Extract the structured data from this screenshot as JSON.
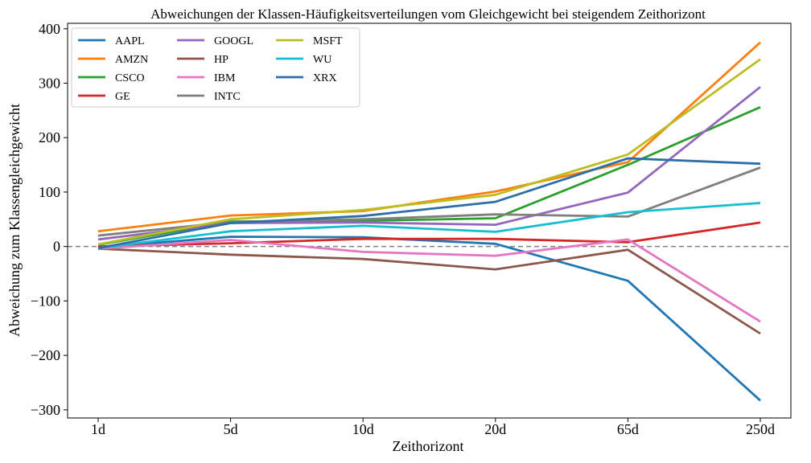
{
  "chart_data": {
    "type": "line",
    "title": "Abweichungen der Klassen-Häufigkeitsverteilungen vom Gleichgewicht bei steigendem Zeithorizont",
    "xlabel": "Zeithorizont",
    "ylabel": "Abweichung zum Klassengleichgewicht",
    "categories": [
      "1d",
      "5d",
      "10d",
      "20d",
      "65d",
      "250d"
    ],
    "ylim": [
      -315,
      410
    ],
    "yticks": [
      -300,
      -200,
      -100,
      0,
      100,
      200,
      300,
      400
    ],
    "ytick_labels": [
      "−300",
      "−200",
      "−100",
      "0",
      "100",
      "200",
      "300",
      "400"
    ],
    "reference_line": {
      "y": 0,
      "style": "dashed",
      "color": "#808080"
    },
    "grid": false,
    "legend_position": "top-left",
    "legend_columns": 3,
    "series": [
      {
        "name": "AAPL",
        "color": "#1f77b4",
        "values": [
          -2,
          18,
          17,
          5,
          -63,
          -283
        ]
      },
      {
        "name": "AMZN",
        "color": "#ff7f0e",
        "values": [
          28,
          57,
          65,
          101,
          155,
          375
        ]
      },
      {
        "name": "CSCO",
        "color": "#2ca02c",
        "values": [
          3,
          46,
          47,
          52,
          150,
          256
        ]
      },
      {
        "name": "GE",
        "color": "#d62728",
        "values": [
          0,
          6,
          14,
          14,
          8,
          44
        ]
      },
      {
        "name": "GOOGL",
        "color": "#9467bd",
        "values": [
          13,
          43,
          44,
          40,
          99,
          293
        ]
      },
      {
        "name": "HP",
        "color": "#8c564b",
        "values": [
          -4,
          -15,
          -23,
          -42,
          -6,
          -160
        ]
      },
      {
        "name": "IBM",
        "color": "#e377c2",
        "values": [
          -4,
          12,
          -10,
          -17,
          13,
          -138
        ]
      },
      {
        "name": "INTC",
        "color": "#7f7f7f",
        "values": [
          20,
          45,
          50,
          59,
          55,
          145
        ]
      },
      {
        "name": "MSFT",
        "color": "#bcbd22",
        "values": [
          4,
          50,
          67,
          95,
          169,
          344
        ]
      },
      {
        "name": "WU",
        "color": "#17becf",
        "values": [
          -3,
          28,
          38,
          27,
          63,
          80
        ]
      },
      {
        "name": "XRX",
        "color": "#2c6fa8",
        "values": [
          -3,
          43,
          56,
          82,
          162,
          152
        ]
      }
    ]
  }
}
